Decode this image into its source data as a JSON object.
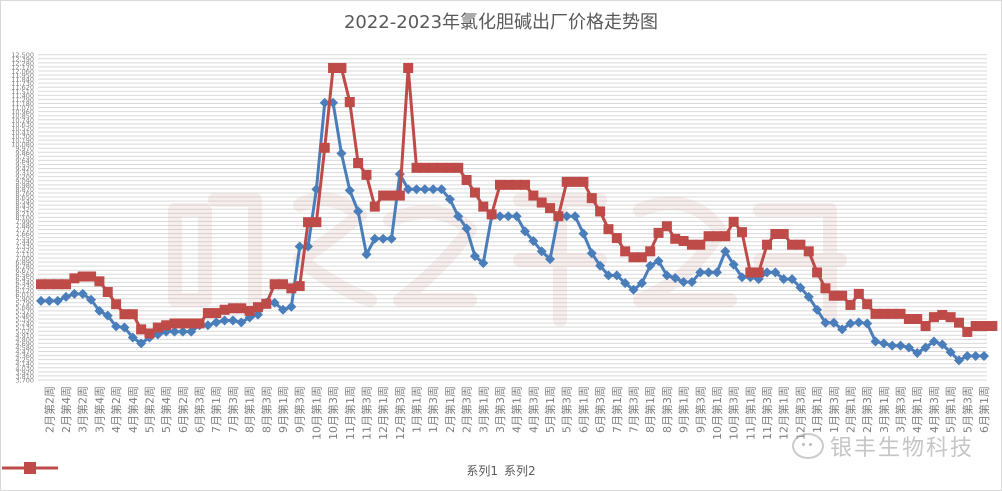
{
  "chart_data": {
    "type": "line",
    "title": "2022-2023年氯化胆碱出厂价格走势图",
    "xlabel": "",
    "ylabel": "",
    "ylim": [
      3700,
      12600
    ],
    "ytick_step": 110,
    "ytick_labels_sample": [
      "3,700",
      "3,810",
      "3,920",
      "4,030",
      "4,140",
      "12,600"
    ],
    "grid": true,
    "legend_position": "bottom",
    "x": [
      "2月第1周",
      "2月第2周",
      "2月第3周",
      "2月第4周",
      "3月第1周",
      "3月第2周",
      "3月第3周",
      "3月第4周",
      "4月第1周",
      "4月第2周",
      "4月第3周",
      "4月第4周",
      "5月第1周",
      "5月第2周",
      "5月第3周",
      "5月第4周",
      "6月第1周",
      "6月第2周",
      "6月第3周",
      "6月第3周b",
      "7月第1周",
      "7月第2周",
      "7月第3周",
      "7月第4周",
      "8月第1周",
      "8月第2周",
      "8月第3周",
      "8月第4周",
      "9月第1周",
      "9月第2周",
      "9月第3周",
      "9月第4周",
      "10月第1周",
      "10月第2周",
      "10月第3周",
      "10月第4周",
      "11月第1周",
      "11月第2周",
      "11月第3周",
      "11月第4周",
      "12月第1周",
      "12月第2周",
      "12月第3周",
      "12月第4周",
      "1月第1周",
      "1月第2周",
      "1月第3周",
      "1月第4周",
      "2月第1周",
      "2月第2周",
      "2月第3周",
      "2月第4周",
      "3月第1周",
      "3月第2周",
      "3月第3周",
      "3月第4周",
      "4月第1周",
      "4月第2周",
      "4月第3周",
      "4月第4周",
      "5月第1周",
      "5月第2周",
      "5月第3周",
      "5月第4周",
      "6月第1周",
      "6月第2周",
      "6月第3周",
      "6月第4周",
      "7月第1周",
      "7月第2周",
      "7月第3周",
      "7月第4周",
      "8月第1周",
      "8月第2周",
      "8月第3周",
      "8月第4周",
      "9月第1周",
      "9月第2周",
      "9月第3周",
      "9月第4周",
      "10月第1周",
      "10月第2周",
      "10月第3周",
      "10月第4周",
      "11月第1周",
      "11月第2周",
      "11月第3周",
      "11月第4周",
      "12月第1周",
      "12月第2周",
      "12月第3周",
      "12月第4周",
      "1月第1周",
      "1月第2周",
      "1月第3周",
      "1月第4周",
      "2月第1周",
      "2月第2周",
      "2月第3周",
      "2月第4周",
      "3月第1周",
      "3月第2周",
      "3月第3周",
      "3月第4周",
      "4月第1周",
      "4月第2周",
      "4月第3周",
      "4月第4周",
      "5月第1周",
      "5月第2周",
      "5月第3周",
      "5月第4周",
      "6月第1周",
      "6月第2周",
      "6月第3周"
    ],
    "x_tick_labels": [
      "2月第2周",
      "2月第4周",
      "3月第2周",
      "3月第4周",
      "4月第2周",
      "4月第4周",
      "5月第2周",
      "5月第4周",
      "6月第2周",
      "6月第3周",
      "7月第1周",
      "7月第3周",
      "8月第1周",
      "8月第3周",
      "9月第1周",
      "9月第3周",
      "10月第1周",
      "10月第3周",
      "11月第1周",
      "11月第3周",
      "12月第1周",
      "12月第3周",
      "1月第1周",
      "1月第3周",
      "2月第1周",
      "2月第3周",
      "3月第1周",
      "3月第3周",
      "4月第1周",
      "4月第3周",
      "5月第1周",
      "5月第3周",
      "6月第1周",
      "6月第3周",
      "7月第1周",
      "7月第3周",
      "8月第1周",
      "8月第3周",
      "9月第1周",
      "9月第3周",
      "10月第1周",
      "10月第3周",
      "11月第1周",
      "11月第3周",
      "12月第1周",
      "12月第3周",
      "1月第1周",
      "1月第3周",
      "2月第1周",
      "2月第3周",
      "3月第1周",
      "3月第3周",
      "4月第1周",
      "4月第3周",
      "5月第1周",
      "5月第3周",
      "6月第1周"
    ],
    "series": [
      {
        "name": "系列1",
        "color": "#4a7ebb",
        "marker": "diamond",
        "values": [
          5840,
          5840,
          5840,
          5950,
          6030,
          6030,
          5870,
          5570,
          5440,
          5150,
          5120,
          4850,
          4690,
          4850,
          4930,
          5010,
          5010,
          5010,
          5010,
          5180,
          5180,
          5260,
          5310,
          5310,
          5260,
          5390,
          5470,
          5790,
          5790,
          5600,
          5680,
          7310,
          7310,
          8860,
          11200,
          11200,
          9830,
          8830,
          8260,
          7100,
          7520,
          7520,
          7520,
          9270,
          8860,
          8860,
          8860,
          8860,
          8860,
          8590,
          8130,
          7800,
          7050,
          6860,
          8130,
          8130,
          8130,
          8130,
          7720,
          7460,
          7180,
          6970,
          8130,
          8130,
          8130,
          7660,
          7130,
          6790,
          6530,
          6530,
          6320,
          6140,
          6320,
          6790,
          6920,
          6530,
          6460,
          6350,
          6350,
          6610,
          6610,
          6610,
          7180,
          6820,
          6480,
          6480,
          6430,
          6610,
          6610,
          6430,
          6430,
          6200,
          5950,
          5600,
          5250,
          5250,
          5070,
          5230,
          5260,
          5230,
          4740,
          4690,
          4630,
          4630,
          4580,
          4430,
          4580,
          4740,
          4660,
          4450,
          4230,
          4350,
          4350,
          4350
        ]
      },
      {
        "name": "系列2",
        "color": "#be4b48",
        "marker": "square",
        "values": [
          6290,
          6290,
          6290,
          6290,
          6450,
          6500,
          6500,
          6370,
          6080,
          5750,
          5480,
          5480,
          5070,
          4960,
          5120,
          5180,
          5230,
          5230,
          5230,
          5230,
          5510,
          5510,
          5600,
          5640,
          5640,
          5570,
          5670,
          5760,
          6290,
          6290,
          6180,
          6240,
          7970,
          7970,
          9980,
          12140,
          12140,
          11220,
          9570,
          9250,
          8390,
          8690,
          8690,
          8690,
          12140,
          9440,
          9440,
          9440,
          9440,
          9440,
          9440,
          9110,
          8770,
          8390,
          8180,
          8980,
          8980,
          8980,
          8980,
          8690,
          8500,
          8350,
          8130,
          9060,
          9060,
          9060,
          8620,
          8260,
          7780,
          7540,
          7180,
          7020,
          7020,
          7180,
          7680,
          7860,
          7520,
          7460,
          7360,
          7360,
          7590,
          7590,
          7590,
          7980,
          7700,
          6610,
          6610,
          7360,
          7650,
          7650,
          7360,
          7360,
          7180,
          6610,
          6180,
          5980,
          5980,
          5730,
          6030,
          5750,
          5490,
          5490,
          5490,
          5490,
          5350,
          5350,
          5160,
          5400,
          5460,
          5400,
          5250,
          5000,
          5160,
          5160,
          5160
        ]
      }
    ]
  },
  "legend": {
    "items": [
      {
        "label": "系列1",
        "color": "#4a7ebb"
      },
      {
        "label": "系列2",
        "color": "#be4b48"
      }
    ]
  },
  "watermark": {
    "text": "银丰生物科技"
  }
}
